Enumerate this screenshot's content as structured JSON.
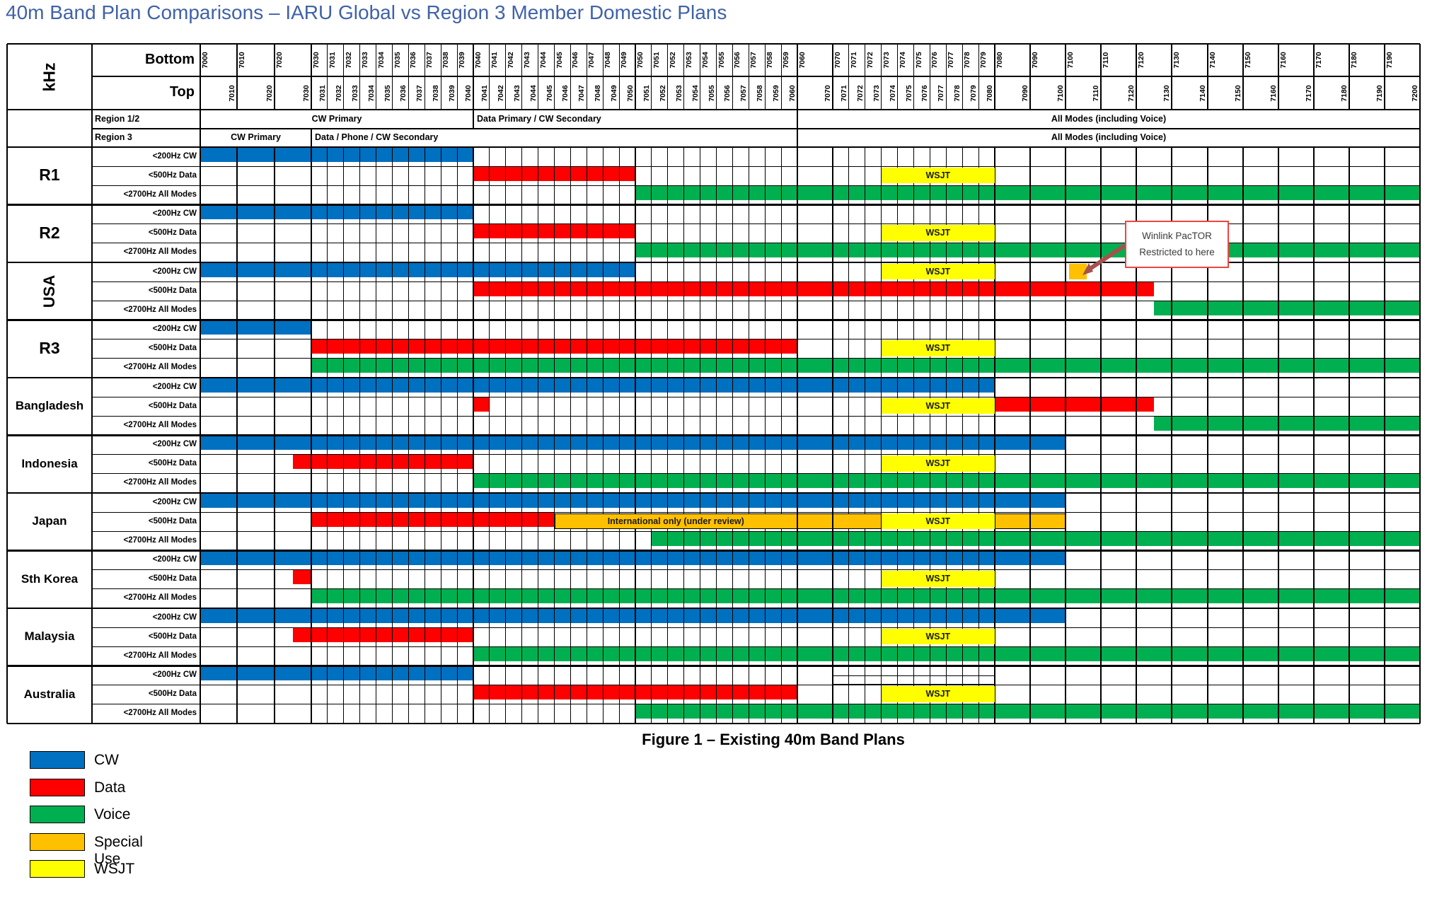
{
  "title": "40m Band Plan Comparisons – IARU Global vs Region 3 Member Domestic Plans",
  "caption": "Figure 1 – Existing 40m Band Plans",
  "header": {
    "unit_label": "kHz",
    "bottom_label": "Bottom",
    "top_label": "Top"
  },
  "colors": {
    "cw": "#0070C0",
    "data": "#FF0000",
    "voice": "#00B050",
    "special": "#FFC000",
    "wsjt": "#FFFF00",
    "none": "transparent",
    "title_text": "#4062A8",
    "annotation_border": "#F0453E",
    "arrow": "#A5524E"
  },
  "legend": [
    {
      "label": "CW",
      "mode": "cw"
    },
    {
      "label": "Data",
      "mode": "data"
    },
    {
      "label": "Voice",
      "mode": "voice"
    },
    {
      "label": "Special Use",
      "mode": "special"
    },
    {
      "label": "WSJT",
      "mode": "wsjt"
    }
  ],
  "annotation": {
    "line1": "Winlink PacTOR",
    "line2": "Restricted to here",
    "points_to_khz": 7101
  },
  "chart_data": {
    "type": "table",
    "x_unit": "kHz",
    "x_range": [
      7000,
      7200
    ],
    "axis_segments": [
      {
        "start": 7000,
        "end": 7030,
        "step": 10
      },
      {
        "start": 7030,
        "end": 7060,
        "step": 1
      },
      {
        "start": 7060,
        "end": 7070,
        "step": 10
      },
      {
        "start": 7070,
        "end": 7080,
        "step": 1
      },
      {
        "start": 7080,
        "end": 7200,
        "step": 10
      }
    ],
    "region_rows": [
      {
        "label": "Region 1/2",
        "spans": [
          {
            "text": "CW Primary",
            "from": 7000,
            "to": 7040,
            "align": "center"
          },
          {
            "text": "Data Primary / CW Secondary",
            "from": 7040,
            "to": 7060,
            "align": "left"
          },
          {
            "text": "All Modes (including Voice)",
            "from": 7060,
            "to": 7200,
            "align": "center"
          }
        ]
      },
      {
        "label": "Region 3",
        "spans": [
          {
            "text": "CW Primary",
            "from": 7000,
            "to": 7030,
            "align": "center"
          },
          {
            "text": "Data / Phone / CW Secondary",
            "from": 7030,
            "to": 7060,
            "align": "left"
          },
          {
            "text": "All Modes (including Voice)",
            "from": 7060,
            "to": 7200,
            "align": "center"
          }
        ]
      }
    ],
    "row_labels": [
      "<200Hz CW",
      "<500Hz Data",
      "<2700Hz All Modes"
    ],
    "groups": [
      {
        "name": "R1",
        "label_style": "big",
        "rows": [
          [
            {
              "from": 7000,
              "to": 7040,
              "mode": "cw"
            }
          ],
          [
            {
              "from": 7040,
              "to": 7050,
              "mode": "data"
            },
            {
              "from": 7073,
              "to": 7080,
              "mode": "wsjt",
              "label": "WSJT",
              "overlay": true
            }
          ],
          [
            {
              "from": 7050,
              "to": 7200,
              "mode": "voice"
            }
          ]
        ]
      },
      {
        "name": "R2",
        "label_style": "big",
        "rows": [
          [
            {
              "from": 7000,
              "to": 7040,
              "mode": "cw"
            }
          ],
          [
            {
              "from": 7040,
              "to": 7050,
              "mode": "data"
            },
            {
              "from": 7073,
              "to": 7080,
              "mode": "wsjt",
              "label": "WSJT",
              "overlay": true
            }
          ],
          [
            {
              "from": 7050,
              "to": 7200,
              "mode": "voice"
            }
          ]
        ]
      },
      {
        "name": "USA",
        "label_style": "vertical",
        "rows": [
          [
            {
              "from": 7000,
              "to": 7050,
              "mode": "cw"
            },
            {
              "from": 7073,
              "to": 7080,
              "mode": "wsjt",
              "label": "WSJT",
              "overlay": true
            },
            {
              "from": 7101,
              "to": 7106,
              "mode": "special",
              "overlay": true
            }
          ],
          [
            {
              "from": 7040,
              "to": 7125,
              "mode": "data"
            }
          ],
          [
            {
              "from": 7125,
              "to": 7200,
              "mode": "voice"
            }
          ]
        ]
      },
      {
        "name": "R3",
        "label_style": "big",
        "rows": [
          [
            {
              "from": 7000,
              "to": 7030,
              "mode": "cw"
            }
          ],
          [
            {
              "from": 7030,
              "to": 7060,
              "mode": "data"
            },
            {
              "from": 7073,
              "to": 7080,
              "mode": "wsjt",
              "label": "WSJT",
              "overlay": true
            }
          ],
          [
            {
              "from": 7030,
              "to": 7200,
              "mode": "voice"
            }
          ]
        ]
      },
      {
        "name": "Bangladesh",
        "label_style": "normal",
        "rows": [
          [
            {
              "from": 7000,
              "to": 7080,
              "mode": "cw"
            }
          ],
          [
            {
              "from": 7040,
              "to": 7041,
              "mode": "data"
            },
            {
              "from": 7073,
              "to": 7080,
              "mode": "wsjt",
              "label": "WSJT",
              "overlay": true
            },
            {
              "from": 7080,
              "to": 7125,
              "mode": "data"
            }
          ],
          [
            {
              "from": 7125,
              "to": 7200,
              "mode": "voice"
            }
          ]
        ]
      },
      {
        "name": "Indonesia",
        "label_style": "normal",
        "rows": [
          [
            {
              "from": 7000,
              "to": 7100,
              "mode": "cw"
            }
          ],
          [
            {
              "from": 7025,
              "to": 7040,
              "mode": "data"
            },
            {
              "from": 7073,
              "to": 7080,
              "mode": "wsjt",
              "label": "WSJT",
              "overlay": true
            }
          ],
          [
            {
              "from": 7040,
              "to": 7200,
              "mode": "voice"
            }
          ]
        ]
      },
      {
        "name": "Japan",
        "label_style": "normal",
        "rows": [
          [
            {
              "from": 7000,
              "to": 7100,
              "mode": "cw"
            }
          ],
          [
            {
              "from": 7030,
              "to": 7045,
              "mode": "data"
            },
            {
              "from": 7045,
              "to": 7060,
              "mode": "special",
              "label": "International only (under review)",
              "overlay": true,
              "outline": true
            },
            {
              "from": 7060,
              "to": 7070,
              "mode": "special",
              "overlay": true,
              "outline": true
            },
            {
              "from": 7070,
              "to": 7073,
              "mode": "special",
              "overlay": true,
              "outline": true
            },
            {
              "from": 7073,
              "to": 7080,
              "mode": "wsjt",
              "label": "WSJT",
              "overlay": true
            },
            {
              "from": 7080,
              "to": 7090,
              "mode": "special",
              "overlay": true,
              "outline": true
            },
            {
              "from": 7090,
              "to": 7100,
              "mode": "special",
              "overlay": true,
              "outline": true
            }
          ],
          [
            {
              "from": 7051,
              "to": 7200,
              "mode": "voice"
            }
          ]
        ]
      },
      {
        "name": "Sth Korea",
        "label_style": "normal",
        "rows": [
          [
            {
              "from": 7000,
              "to": 7100,
              "mode": "cw"
            }
          ],
          [
            {
              "from": 7025,
              "to": 7030,
              "mode": "data"
            },
            {
              "from": 7073,
              "to": 7080,
              "mode": "wsjt",
              "label": "WSJT",
              "overlay": true
            }
          ],
          [
            {
              "from": 7030,
              "to": 7200,
              "mode": "voice"
            }
          ]
        ]
      },
      {
        "name": "Malaysia",
        "label_style": "normal",
        "rows": [
          [
            {
              "from": 7000,
              "to": 7100,
              "mode": "cw"
            }
          ],
          [
            {
              "from": 7025,
              "to": 7040,
              "mode": "data"
            },
            {
              "from": 7073,
              "to": 7080,
              "mode": "wsjt",
              "label": "WSJT",
              "overlay": true
            }
          ],
          [
            {
              "from": 7040,
              "to": 7200,
              "mode": "voice"
            }
          ]
        ]
      },
      {
        "name": "Australia",
        "label_style": "normal",
        "rows": [
          [
            {
              "from": 7000,
              "to": 7040,
              "mode": "cw"
            },
            {
              "from": 7070,
              "to": 7080,
              "mode": "none",
              "overlay": true,
              "outline": true,
              "pos": "low"
            }
          ],
          [
            {
              "from": 7040,
              "to": 7060,
              "mode": "data"
            },
            {
              "from": 7073,
              "to": 7080,
              "mode": "wsjt",
              "label": "WSJT",
              "overlay": true
            }
          ],
          [
            {
              "from": 7050,
              "to": 7200,
              "mode": "voice"
            }
          ]
        ]
      }
    ]
  }
}
